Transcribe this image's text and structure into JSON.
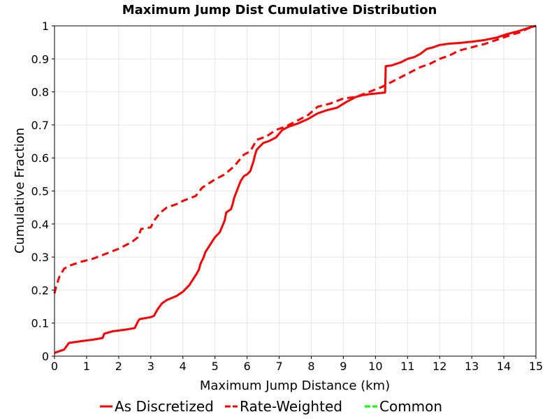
{
  "chart_data": {
    "type": "line",
    "title": "Maximum Jump Dist Cumulative Distribution",
    "xlabel": "Maximum Jump Distance (km)",
    "ylabel": "Cumulative Fraction",
    "xlim": [
      0,
      15
    ],
    "ylim": [
      0,
      1
    ],
    "x_ticks": [
      "0",
      "1",
      "2",
      "3",
      "4",
      "5",
      "6",
      "7",
      "8",
      "9",
      "10",
      "11",
      "12",
      "13",
      "14",
      "15"
    ],
    "y_ticks": [
      "0",
      "0.1",
      "0.2",
      "0.3",
      "0.4",
      "0.5",
      "0.6",
      "0.7",
      "0.8",
      "0.9",
      "1"
    ],
    "grid": true,
    "legend_position": "bottom",
    "series": [
      {
        "name": "As Discretized",
        "color": "#ff0000",
        "style": "solid",
        "x": [
          0,
          0.3,
          0.45,
          0.8,
          1.2,
          1.5,
          1.55,
          1.8,
          2.2,
          2.5,
          2.55,
          2.6,
          2.65,
          3.0,
          3.1,
          3.2,
          3.35,
          3.5,
          3.8,
          4.0,
          4.2,
          4.3,
          4.4,
          4.5,
          4.55,
          4.65,
          4.7,
          4.8,
          4.9,
          5.0,
          5.15,
          5.3,
          5.35,
          5.5,
          5.55,
          5.6,
          5.7,
          5.8,
          5.9,
          6.0,
          6.1,
          6.2,
          6.25,
          6.3,
          6.4,
          6.5,
          6.7,
          6.9,
          7.1,
          7.3,
          7.6,
          7.9,
          8.2,
          8.5,
          8.8,
          9.1,
          9.4,
          9.6,
          9.8,
          10.0,
          10.3,
          10.32,
          10.5,
          10.8,
          11.0,
          11.2,
          11.4,
          11.6,
          11.8,
          12.0,
          12.3,
          12.6,
          13.0,
          13.4,
          13.8,
          14.1,
          14.5,
          14.8,
          15.0
        ],
        "values": [
          0.01,
          0.02,
          0.04,
          0.045,
          0.05,
          0.055,
          0.068,
          0.075,
          0.08,
          0.085,
          0.095,
          0.105,
          0.112,
          0.118,
          0.122,
          0.14,
          0.16,
          0.17,
          0.182,
          0.195,
          0.215,
          0.23,
          0.245,
          0.262,
          0.28,
          0.3,
          0.315,
          0.33,
          0.345,
          0.36,
          0.375,
          0.41,
          0.435,
          0.445,
          0.46,
          0.48,
          0.505,
          0.53,
          0.545,
          0.55,
          0.56,
          0.59,
          0.61,
          0.625,
          0.635,
          0.645,
          0.652,
          0.662,
          0.685,
          0.695,
          0.705,
          0.718,
          0.735,
          0.745,
          0.752,
          0.77,
          0.785,
          0.79,
          0.793,
          0.795,
          0.798,
          0.878,
          0.88,
          0.89,
          0.9,
          0.905,
          0.915,
          0.93,
          0.935,
          0.942,
          0.946,
          0.948,
          0.952,
          0.957,
          0.965,
          0.975,
          0.985,
          0.995,
          1.0
        ]
      },
      {
        "name": "Rate-Weighted",
        "color": "#ff0000",
        "style": "dashed",
        "x": [
          0,
          0.05,
          0.15,
          0.3,
          0.5,
          0.8,
          1.2,
          1.6,
          2.0,
          2.4,
          2.6,
          2.7,
          3.0,
          3.1,
          3.3,
          3.5,
          3.8,
          4.0,
          4.4,
          4.6,
          5.0,
          5.3,
          5.6,
          5.9,
          6.1,
          6.3,
          6.6,
          6.9,
          7.2,
          7.5,
          7.9,
          8.2,
          8.6,
          9.0,
          9.4,
          9.8,
          10.2,
          10.5,
          10.8,
          11.1,
          11.4,
          11.7,
          12.0,
          12.3,
          12.6,
          13.0,
          13.4,
          13.7,
          14.0,
          14.3,
          14.5,
          14.7,
          15.0
        ],
        "values": [
          0.19,
          0.21,
          0.24,
          0.265,
          0.275,
          0.285,
          0.295,
          0.31,
          0.325,
          0.345,
          0.36,
          0.385,
          0.39,
          0.41,
          0.435,
          0.45,
          0.46,
          0.47,
          0.485,
          0.51,
          0.535,
          0.55,
          0.575,
          0.61,
          0.62,
          0.655,
          0.665,
          0.685,
          0.695,
          0.71,
          0.73,
          0.755,
          0.765,
          0.78,
          0.785,
          0.8,
          0.815,
          0.83,
          0.845,
          0.86,
          0.875,
          0.885,
          0.9,
          0.91,
          0.925,
          0.935,
          0.945,
          0.955,
          0.965,
          0.975,
          0.98,
          0.99,
          1.0
        ]
      },
      {
        "name": "Common",
        "color": "#00ff00",
        "style": "dashed",
        "x": [],
        "values": []
      }
    ]
  }
}
